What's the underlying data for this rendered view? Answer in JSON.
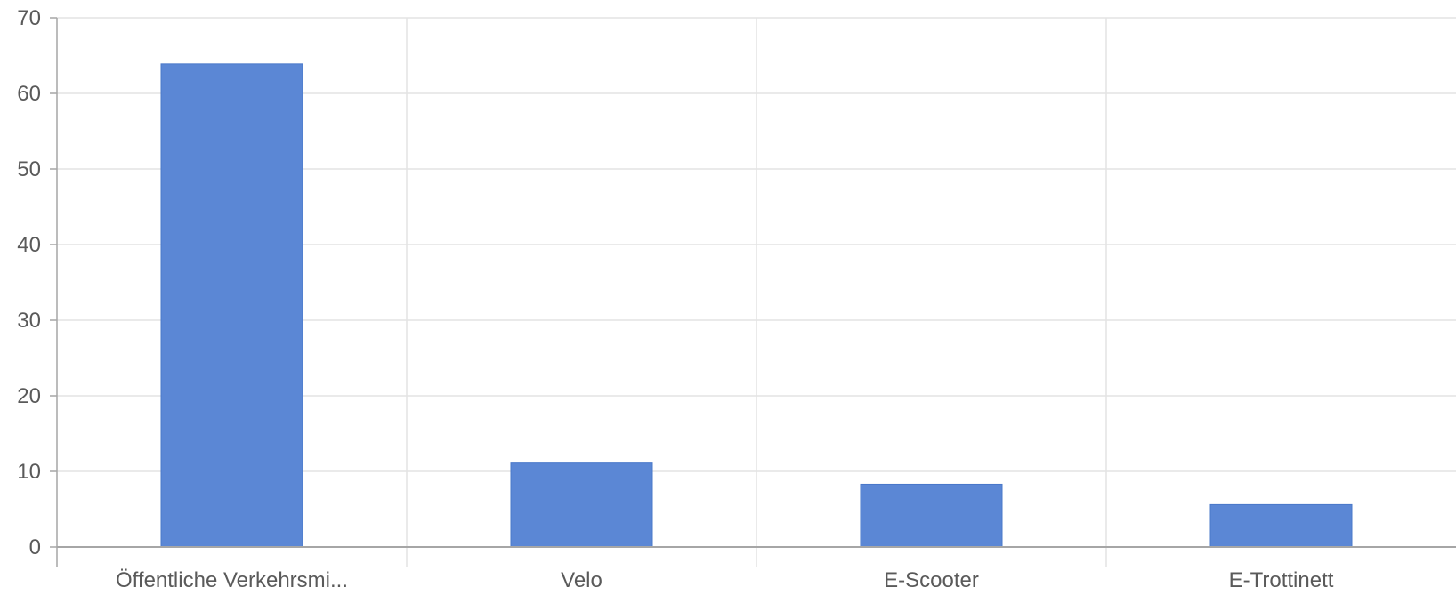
{
  "chart_data": {
    "type": "bar",
    "title": "",
    "xlabel": "",
    "ylabel": "",
    "categories": [
      "Öffentliche Verkehrsmi...",
      "Velo",
      "E-Scooter",
      "E-Trottinett"
    ],
    "values": [
      63.9,
      11.1,
      8.3,
      5.6
    ],
    "ylim": [
      0,
      70
    ],
    "yticks": [
      "0",
      "10",
      "20",
      "30",
      "40",
      "50",
      "60",
      "70"
    ],
    "grid": true,
    "legend": "none",
    "colors": {
      "bar": "#5b87d5",
      "grid": "#e3e3e3",
      "axis": "#a6a6a6",
      "text": "#5a5a5a"
    }
  }
}
